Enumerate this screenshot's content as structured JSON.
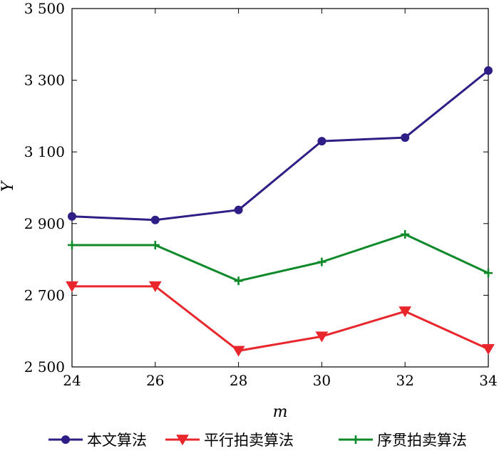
{
  "chart_data": {
    "type": "line",
    "xlabel": "m",
    "ylabel": "Y",
    "x": [
      24,
      26,
      28,
      30,
      32,
      34
    ],
    "xlim": [
      24,
      34
    ],
    "ylim": [
      2500,
      3500
    ],
    "x_tick_labels": [
      "24",
      "26",
      "28",
      "30",
      "32",
      "34"
    ],
    "y_ticks": [
      2500,
      2700,
      2900,
      3100,
      3300,
      3500
    ],
    "y_tick_labels": [
      "2 500",
      "2 700",
      "2 900",
      "3 100",
      "3 300",
      "3 500"
    ],
    "grid": false,
    "legend_position": "bottom",
    "series": [
      {
        "name": "本文算法",
        "values": [
          2920,
          2910,
          2938,
          3130,
          3140,
          3327
        ],
        "color": "#2e1f86",
        "marker": "circle"
      },
      {
        "name": "平行拍卖算法",
        "values": [
          2725,
          2725,
          2545,
          2585,
          2655,
          2550
        ],
        "color": "#e8262c",
        "marker": "triangle-down"
      },
      {
        "name": "序贯拍卖算法",
        "values": [
          2840,
          2840,
          2740,
          2793,
          2870,
          2762
        ],
        "color": "#0f8a2a",
        "marker": "plus"
      }
    ]
  }
}
